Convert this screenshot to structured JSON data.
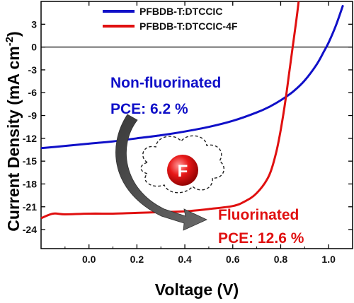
{
  "chart_data": {
    "type": "line",
    "xlabel": "Voltage (V)",
    "ylabel": "Current Density (mA cm",
    "ylabel_sup": "-2",
    "ylabel_close": ")",
    "xlim": [
      -0.2,
      1.1
    ],
    "ylim": [
      -26.5,
      6
    ],
    "xticks": [
      0.0,
      0.2,
      0.4,
      0.6,
      0.8,
      1.0
    ],
    "xtick_labels": [
      "0.0",
      "0.2",
      "0.4",
      "0.6",
      "0.8",
      "1.0"
    ],
    "yticks": [
      3,
      0,
      -3,
      -6,
      -9,
      -12,
      -15,
      -18,
      -21,
      -24
    ],
    "ytick_labels": [
      "3",
      "0",
      "-3",
      "-6",
      "-9",
      "-12",
      "-15",
      "-18",
      "-21",
      "-24"
    ],
    "grid": false,
    "legend_position": "top-center",
    "series": [
      {
        "name": "PFBDB-T:DTCCIC",
        "color": "#1010c8",
        "points": [
          [
            -0.2,
            -13.3
          ],
          [
            -0.1,
            -13.0
          ],
          [
            0.0,
            -12.7
          ],
          [
            0.1,
            -12.4
          ],
          [
            0.2,
            -12.0
          ],
          [
            0.3,
            -11.6
          ],
          [
            0.4,
            -11.1
          ],
          [
            0.5,
            -10.5
          ],
          [
            0.6,
            -9.7
          ],
          [
            0.7,
            -8.6
          ],
          [
            0.75,
            -7.9
          ],
          [
            0.8,
            -7.0
          ],
          [
            0.85,
            -5.9
          ],
          [
            0.9,
            -4.4
          ],
          [
            0.95,
            -2.3
          ],
          [
            0.98,
            -0.6
          ],
          [
            1.0,
            0.6
          ],
          [
            1.03,
            2.8
          ],
          [
            1.06,
            5.5
          ]
        ]
      },
      {
        "name": "PFBDB-T:DTCCIC-4F",
        "color": "#e01010",
        "points": [
          [
            -0.2,
            -22.5
          ],
          [
            -0.15,
            -21.9
          ],
          [
            -0.1,
            -22.0
          ],
          [
            0.0,
            -21.9
          ],
          [
            0.1,
            -21.9
          ],
          [
            0.2,
            -21.8
          ],
          [
            0.3,
            -21.7
          ],
          [
            0.4,
            -21.6
          ],
          [
            0.5,
            -21.3
          ],
          [
            0.6,
            -20.9
          ],
          [
            0.65,
            -20.3
          ],
          [
            0.7,
            -19.2
          ],
          [
            0.75,
            -17.0
          ],
          [
            0.78,
            -14.0
          ],
          [
            0.8,
            -10.9
          ],
          [
            0.82,
            -7.0
          ],
          [
            0.835,
            -3.5
          ],
          [
            0.85,
            0.0
          ],
          [
            0.865,
            3.5
          ],
          [
            0.875,
            6.0
          ]
        ]
      }
    ]
  },
  "annotations": {
    "nonfluor_title": "Non-fluorinated",
    "nonfluor_pce": "PCE: 6.2 %",
    "fluor_title": "Fluorinated",
    "fluor_pce": "PCE: 12.6 %",
    "f_symbol": "F"
  },
  "colors": {
    "blue": "#1010c8",
    "red": "#e01010",
    "arrow": "#555555"
  }
}
